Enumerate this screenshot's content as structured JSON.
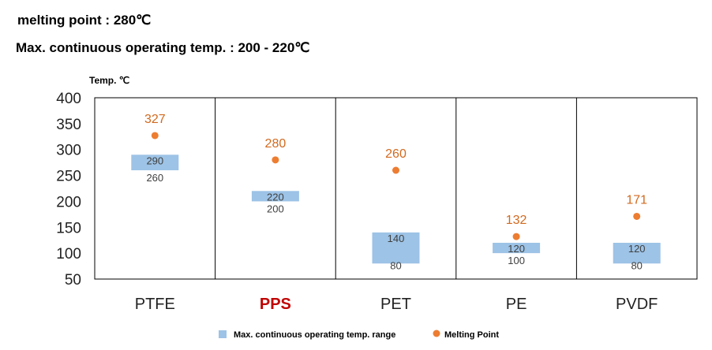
{
  "header": {
    "line1": "melting point : 280℃",
    "line2": "Max. continuous operating temp. : 200 - 220℃"
  },
  "chart_data": {
    "type": "bar",
    "ylabel": "Temp. ℃",
    "ylim": [
      50,
      400
    ],
    "yticks": [
      "400",
      "350",
      "300",
      "250",
      "200",
      "150",
      "100",
      "50"
    ],
    "categories": [
      "PTFE",
      "PPS",
      "PET",
      "PE",
      "PVDF"
    ],
    "highlight_category": "PPS",
    "highlight_color": "#c00000",
    "series": [
      {
        "name": "Max. continuous operating temp. range",
        "kind": "floating-bar",
        "color": "#9dc3e6",
        "low": [
          260,
          200,
          80,
          100,
          80
        ],
        "high": [
          290,
          220,
          140,
          120,
          120
        ]
      },
      {
        "name": "Melting Point",
        "kind": "scatter",
        "color": "#ed7d31",
        "values": [
          327,
          280,
          260,
          132,
          171
        ]
      }
    ],
    "legend": "bottom"
  }
}
